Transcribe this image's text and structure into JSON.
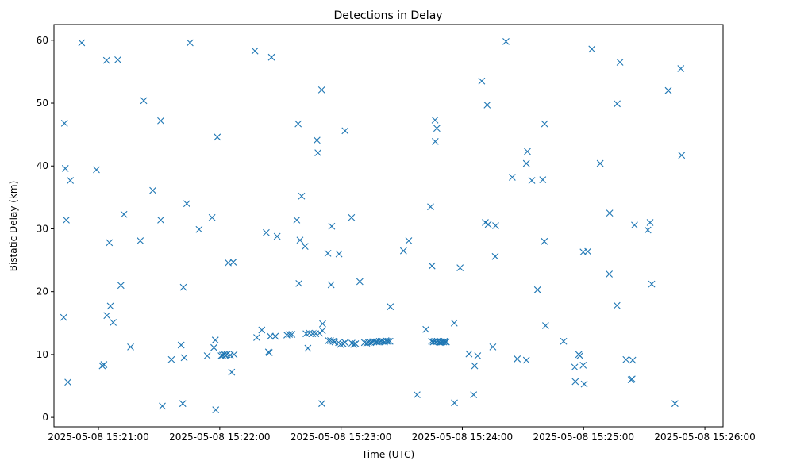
{
  "chart_data": {
    "type": "scatter",
    "title": "Detections in Delay",
    "xlabel": "Time (UTC)",
    "ylabel": "Bistatic Delay (km)",
    "x_unit": "seconds past 2025-05-08 15:21:00",
    "xlim": [
      -22,
      309
    ],
    "ylim": [
      -1.5,
      62.5
    ],
    "x_ticks": [
      {
        "value": 0,
        "label": "2025-05-08 15:21:00"
      },
      {
        "value": 60,
        "label": "2025-05-08 15:22:00"
      },
      {
        "value": 120,
        "label": "2025-05-08 15:23:00"
      },
      {
        "value": 180,
        "label": "2025-05-08 15:24:00"
      },
      {
        "value": 240,
        "label": "2025-05-08 15:25:00"
      },
      {
        "value": 300,
        "label": "2025-05-08 15:26:00"
      }
    ],
    "y_ticks": [
      0,
      10,
      20,
      30,
      40,
      50,
      60
    ],
    "marker": "x",
    "color": "#1f77b4",
    "grid": false,
    "series": [
      {
        "name": "",
        "points": [
          [
            -17.2,
            15.9
          ],
          [
            -16.8,
            46.8
          ],
          [
            -16.4,
            39.6
          ],
          [
            -15.9,
            31.4
          ],
          [
            -15.1,
            5.6
          ],
          [
            -13.9,
            37.7
          ],
          [
            -8.3,
            59.6
          ],
          [
            -1.0,
            39.4
          ],
          [
            1.9,
            8.2
          ],
          [
            2.7,
            8.4
          ],
          [
            4.0,
            56.8
          ],
          [
            4.2,
            16.2
          ],
          [
            5.4,
            27.8
          ],
          [
            5.9,
            17.7
          ],
          [
            7.3,
            15.1
          ],
          [
            9.6,
            56.9
          ],
          [
            11.1,
            21.0
          ],
          [
            12.6,
            32.3
          ],
          [
            15.9,
            11.2
          ],
          [
            20.7,
            28.1
          ],
          [
            22.4,
            50.4
          ],
          [
            26.9,
            36.1
          ],
          [
            30.8,
            47.2
          ],
          [
            30.8,
            31.4
          ],
          [
            31.6,
            1.8
          ],
          [
            36.1,
            9.2
          ],
          [
            40.9,
            11.5
          ],
          [
            41.7,
            2.2
          ],
          [
            42.0,
            20.7
          ],
          [
            42.4,
            9.5
          ],
          [
            43.7,
            34.0
          ],
          [
            45.3,
            59.6
          ],
          [
            49.8,
            29.9
          ],
          [
            53.8,
            9.8
          ],
          [
            56.2,
            31.8
          ],
          [
            57.1,
            11.1
          ],
          [
            57.8,
            12.3
          ],
          [
            58.0,
            1.2
          ],
          [
            58.8,
            44.6
          ],
          [
            60.7,
            9.8
          ],
          [
            61.4,
            9.9
          ],
          [
            62.2,
            10.0
          ],
          [
            62.9,
            9.9
          ],
          [
            63.6,
            10.0
          ],
          [
            64.2,
            24.6
          ],
          [
            65.2,
            9.9
          ],
          [
            65.9,
            7.2
          ],
          [
            66.7,
            24.7
          ],
          [
            67.1,
            10.0
          ],
          [
            77.4,
            58.3
          ],
          [
            78.3,
            12.7
          ],
          [
            80.8,
            13.9
          ],
          [
            83.0,
            29.4
          ],
          [
            84.1,
            10.4
          ],
          [
            84.5,
            10.3
          ],
          [
            85.0,
            12.9
          ],
          [
            85.6,
            57.3
          ],
          [
            87.5,
            12.9
          ],
          [
            88.4,
            28.8
          ],
          [
            93.2,
            13.1
          ],
          [
            94.5,
            13.2
          ],
          [
            95.7,
            13.2
          ],
          [
            98.1,
            31.4
          ],
          [
            98.8,
            46.7
          ],
          [
            99.2,
            21.3
          ],
          [
            99.7,
            28.2
          ],
          [
            100.5,
            35.2
          ],
          [
            102.2,
            27.2
          ],
          [
            102.7,
            13.3
          ],
          [
            103.6,
            11.0
          ],
          [
            104.3,
            13.4
          ],
          [
            105.9,
            13.3
          ],
          [
            107.5,
            13.3
          ],
          [
            108.1,
            44.1
          ],
          [
            108.6,
            42.1
          ],
          [
            109.4,
            13.4
          ],
          [
            110.4,
            52.1
          ],
          [
            110.5,
            2.2
          ],
          [
            110.8,
            13.8
          ],
          [
            110.9,
            14.9
          ],
          [
            113.5,
            26.1
          ],
          [
            113.8,
            12.2
          ],
          [
            114.8,
            12.2
          ],
          [
            115.1,
            21.1
          ],
          [
            115.4,
            30.4
          ],
          [
            116.1,
            12.1
          ],
          [
            117.0,
            12.0
          ],
          [
            118.8,
            11.9
          ],
          [
            119.0,
            26.0
          ],
          [
            119.7,
            11.6
          ],
          [
            121.0,
            11.7
          ],
          [
            122.0,
            11.9
          ],
          [
            122.0,
            45.6
          ],
          [
            125.2,
            31.8
          ],
          [
            125.4,
            11.8
          ],
          [
            126.3,
            11.6
          ],
          [
            127.2,
            11.7
          ],
          [
            129.3,
            21.6
          ],
          [
            131.6,
            11.9
          ],
          [
            132.7,
            11.8
          ],
          [
            133.6,
            11.9
          ],
          [
            134.6,
            11.9
          ],
          [
            135.5,
            12.0
          ],
          [
            136.2,
            12.1
          ],
          [
            137.4,
            12.0
          ],
          [
            138.0,
            12.0
          ],
          [
            139.0,
            12.0
          ],
          [
            139.8,
            12.1
          ],
          [
            140.7,
            12.1
          ],
          [
            141.5,
            12.0
          ],
          [
            142.2,
            12.2
          ],
          [
            142.7,
            12.1
          ],
          [
            143.4,
            12.1
          ],
          [
            144.2,
            12.1
          ],
          [
            144.4,
            17.6
          ],
          [
            150.9,
            26.5
          ],
          [
            153.5,
            28.1
          ],
          [
            157.6,
            3.6
          ],
          [
            162.0,
            14.0
          ],
          [
            164.3,
            33.5
          ],
          [
            164.8,
            12.1
          ],
          [
            165.0,
            24.1
          ],
          [
            165.6,
            12.0
          ],
          [
            166.3,
            12.1
          ],
          [
            166.5,
            47.3
          ],
          [
            166.6,
            43.9
          ],
          [
            167.0,
            12.0
          ],
          [
            167.4,
            46.0
          ],
          [
            167.7,
            12.1
          ],
          [
            168.4,
            12.0
          ],
          [
            169.0,
            11.9
          ],
          [
            169.5,
            12.0
          ],
          [
            170.0,
            12.0
          ],
          [
            170.7,
            12.0
          ],
          [
            171.2,
            12.1
          ],
          [
            171.6,
            12.0
          ],
          [
            172.1,
            12.0
          ],
          [
            176.0,
            15.0
          ],
          [
            176.1,
            2.3
          ],
          [
            178.9,
            23.8
          ],
          [
            183.3,
            10.1
          ],
          [
            185.6,
            3.6
          ],
          [
            186.1,
            8.2
          ],
          [
            187.6,
            9.8
          ],
          [
            189.6,
            53.5
          ],
          [
            191.4,
            31.0
          ],
          [
            192.3,
            49.7
          ],
          [
            192.8,
            30.7
          ],
          [
            195.1,
            11.2
          ],
          [
            196.3,
            25.6
          ],
          [
            196.5,
            30.5
          ],
          [
            201.6,
            59.8
          ],
          [
            204.7,
            38.2
          ],
          [
            207.2,
            9.3
          ],
          [
            211.7,
            9.1
          ],
          [
            211.7,
            40.4
          ],
          [
            212.2,
            42.3
          ],
          [
            214.4,
            37.7
          ],
          [
            217.2,
            20.3
          ],
          [
            219.8,
            37.8
          ],
          [
            220.6,
            28.0
          ],
          [
            220.7,
            46.7
          ],
          [
            221.2,
            14.6
          ],
          [
            230.1,
            12.1
          ],
          [
            235.6,
            8.0
          ],
          [
            235.9,
            5.7
          ],
          [
            237.6,
            10.0
          ],
          [
            238.2,
            9.8
          ],
          [
            239.8,
            26.3
          ],
          [
            239.8,
            8.3
          ],
          [
            240.3,
            5.3
          ],
          [
            242.1,
            26.4
          ],
          [
            244.1,
            58.6
          ],
          [
            248.2,
            40.4
          ],
          [
            252.7,
            22.8
          ],
          [
            252.9,
            32.5
          ],
          [
            256.5,
            17.8
          ],
          [
            256.6,
            49.9
          ],
          [
            258.0,
            56.5
          ],
          [
            261.0,
            9.2
          ],
          [
            263.5,
            6.0
          ],
          [
            264.0,
            6.1
          ],
          [
            264.3,
            9.1
          ],
          [
            265.2,
            30.6
          ],
          [
            271.8,
            29.8
          ],
          [
            272.9,
            31.0
          ],
          [
            273.7,
            21.2
          ],
          [
            281.9,
            52.0
          ],
          [
            285.2,
            2.2
          ],
          [
            288.1,
            55.5
          ],
          [
            288.5,
            41.7
          ]
        ]
      }
    ]
  }
}
